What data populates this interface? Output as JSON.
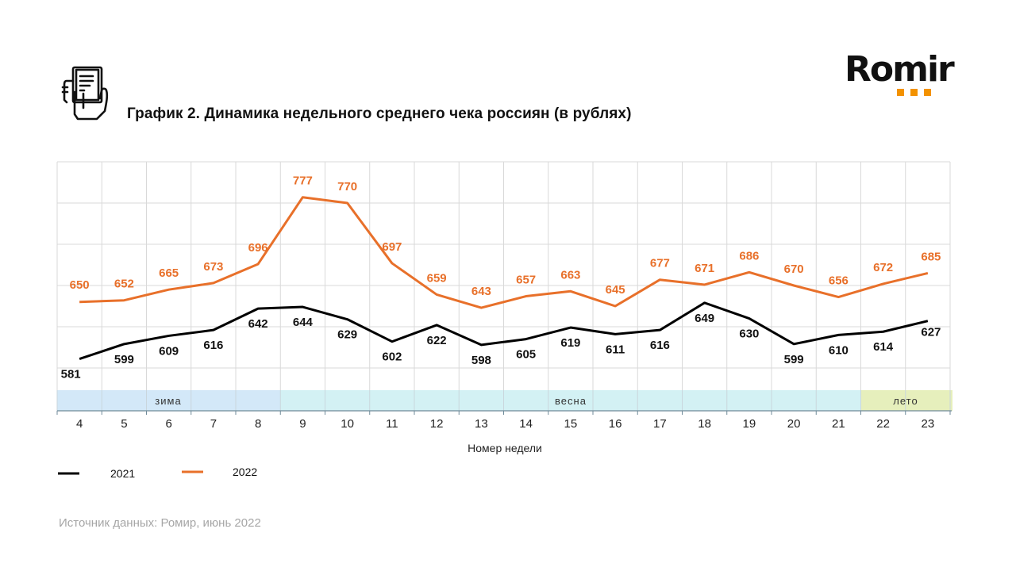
{
  "header": {
    "title": "График 2. Динамика недельного среднего чека россиян (в рублях)",
    "icon": "receipt-in-hand-icon"
  },
  "logo": {
    "text": "Romir",
    "dots_color": "#f39200"
  },
  "chart_data": {
    "type": "line",
    "title": "График 2. Динамика недельного среднего чека россиян (в рублях)",
    "xlabel": "Номер недели",
    "ylabel": "",
    "x": [
      4,
      5,
      6,
      7,
      8,
      9,
      10,
      11,
      12,
      13,
      14,
      15,
      16,
      17,
      18,
      19,
      20,
      21,
      22,
      23
    ],
    "ylim": [
      570,
      820
    ],
    "y_grid_step": 50,
    "grid": true,
    "y_tick_labels_visible": false,
    "series": [
      {
        "name": "2021",
        "color": "#000000",
        "values": [
          581,
          599,
          609,
          616,
          642,
          644,
          629,
          602,
          622,
          598,
          605,
          619,
          611,
          616,
          649,
          630,
          599,
          610,
          614,
          627
        ]
      },
      {
        "name": "2022",
        "color": "#e8702a",
        "values": [
          650,
          652,
          665,
          673,
          696,
          777,
          770,
          697,
          659,
          643,
          657,
          663,
          645,
          677,
          671,
          686,
          670,
          656,
          672,
          685
        ]
      }
    ],
    "seasons": [
      {
        "label": "зима",
        "from_week": 4,
        "to_week": 8,
        "color": "#d3e8f8"
      },
      {
        "label": "весна",
        "from_week": 9,
        "to_week": 21,
        "color": "#d3f1f4"
      },
      {
        "label": "лето",
        "from_week": 22,
        "to_week": 23,
        "color": "#e6efbc"
      }
    ],
    "legend": {
      "placement": "bottom-left",
      "entries": [
        "2021",
        "2022"
      ]
    }
  },
  "source": "Источник данных: Ромир, июнь 2022"
}
